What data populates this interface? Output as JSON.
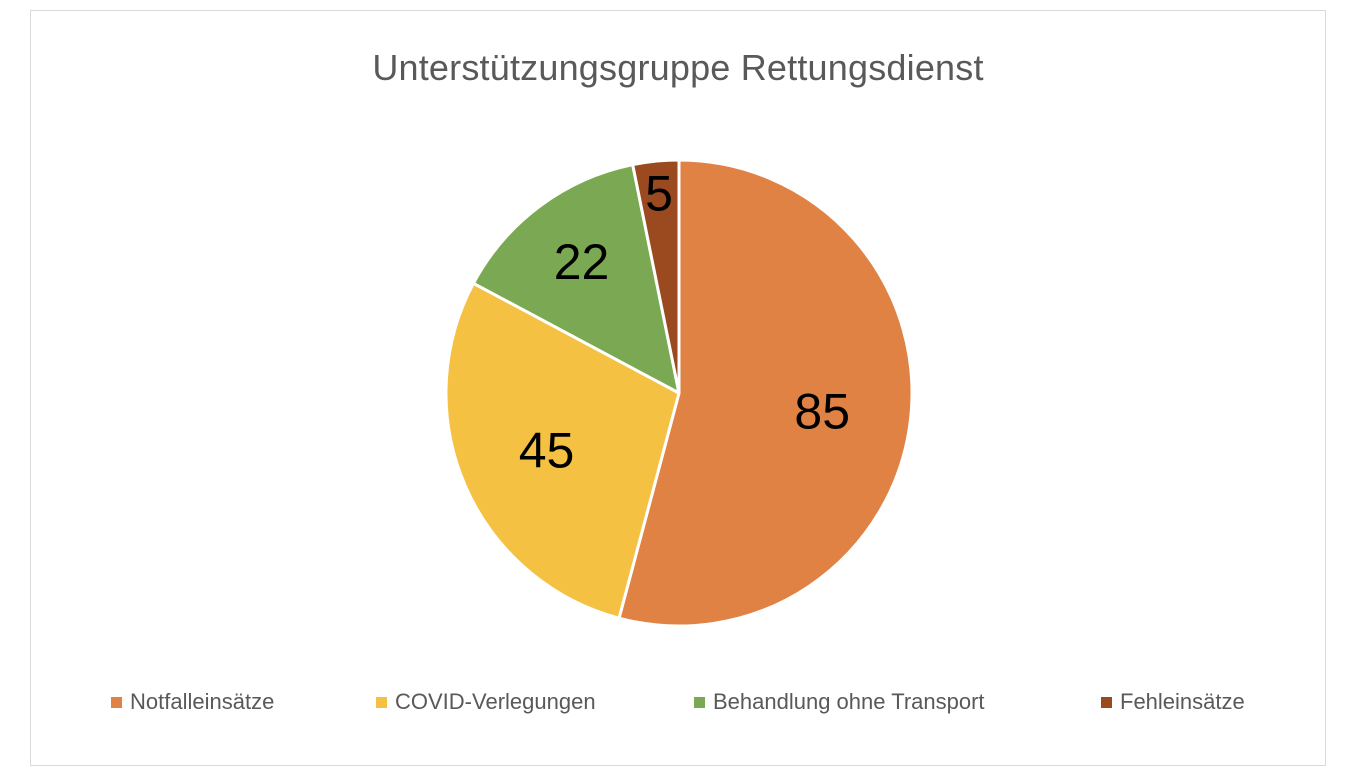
{
  "chart_data": {
    "type": "pie",
    "title": "Unterstützungsgruppe Rettungsdienst",
    "categories": [
      "Notfalleinsätze",
      "COVID-Verlegungen",
      "Behandlung ohne Transport",
      "Fehleinsätze"
    ],
    "values": [
      85,
      45,
      22,
      5
    ],
    "data_labels": [
      "85",
      "45",
      "22",
      "5"
    ],
    "colors": [
      "#E08244",
      "#F5C142",
      "#7BA953",
      "#9A4A1E"
    ],
    "legend_position": "bottom",
    "start_angle_deg": 0,
    "direction": "clockwise"
  }
}
